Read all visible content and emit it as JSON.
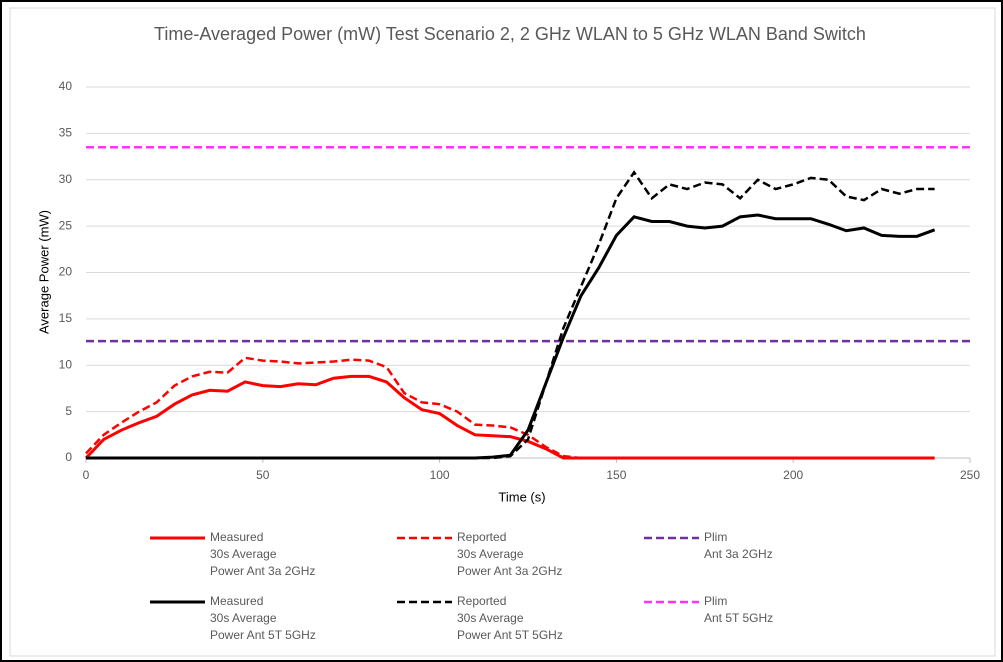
{
  "chart_data": {
    "type": "line",
    "title": "Time-Averaged Power (mW) Test Scenario 2, 2 GHz WLAN to 5 GHz WLAN Band Switch",
    "xlabel": "Time (s)",
    "ylabel": "Average Power (mW)",
    "xlim": [
      0,
      250
    ],
    "xticks": [
      0,
      50,
      100,
      150,
      200,
      250
    ],
    "ylim": [
      0,
      40
    ],
    "yticks": [
      0,
      5,
      10,
      15,
      20,
      25,
      30,
      35,
      40
    ],
    "grid": true,
    "legend": "bottom",
    "series": [
      {
        "name": "Measured\n30s Average\nPower Ant 3a 2GHz",
        "color": "#ff0000",
        "linestyle": "solid",
        "x": [
          0,
          5,
          10,
          15,
          20,
          25,
          30,
          35,
          40,
          45,
          50,
          55,
          60,
          65,
          70,
          75,
          80,
          85,
          90,
          95,
          100,
          105,
          110,
          115,
          120,
          125,
          130,
          135,
          140,
          145,
          150,
          155,
          160,
          165,
          170,
          175,
          180,
          185,
          190,
          195,
          200,
          205,
          210,
          215,
          220,
          225,
          230,
          235,
          240
        ],
        "values": [
          0,
          2,
          3,
          3.8,
          4.5,
          5.8,
          6.8,
          7.3,
          7.2,
          8.2,
          7.8,
          7.7,
          8,
          7.9,
          8.6,
          8.8,
          8.8,
          8.2,
          6.5,
          5.2,
          4.8,
          3.5,
          2.5,
          2.4,
          2.3,
          1.8,
          1,
          0,
          0,
          0,
          0,
          0,
          0,
          0,
          0,
          0,
          0,
          0,
          0,
          0,
          0,
          0,
          0,
          0,
          0,
          0,
          0,
          0,
          0
        ]
      },
      {
        "name": "Reported\n30s Average\nPower Ant 3a 2GHz",
        "color": "#ff0000",
        "linestyle": "dashed",
        "x": [
          0,
          5,
          10,
          15,
          20,
          25,
          30,
          35,
          40,
          45,
          50,
          55,
          60,
          65,
          70,
          75,
          80,
          85,
          90,
          95,
          100,
          105,
          110,
          115,
          120,
          125,
          130,
          135,
          140,
          145,
          150,
          155,
          160,
          165,
          170,
          175,
          180,
          185,
          190,
          195,
          200,
          205,
          210,
          215,
          220,
          225,
          230,
          235,
          240
        ],
        "values": [
          0.5,
          2.5,
          3.8,
          5,
          6,
          7.8,
          8.8,
          9.3,
          9.2,
          10.8,
          10.5,
          10.4,
          10.2,
          10.3,
          10.4,
          10.6,
          10.5,
          9.8,
          7,
          6,
          5.8,
          5,
          3.6,
          3.5,
          3.3,
          2.5,
          1.2,
          0.2,
          0,
          0,
          0,
          0,
          0,
          0,
          0,
          0,
          0,
          0,
          0,
          0,
          0,
          0,
          0,
          0,
          0,
          0,
          0,
          0,
          0
        ]
      },
      {
        "name": "Plim\nAnt 3a 2GHz",
        "color": "#7030a0",
        "linestyle": "dashed",
        "x": [
          0,
          250
        ],
        "values": [
          12.6,
          12.6
        ]
      },
      {
        "name": "Measured\n30s Average\nPower Ant 5T 5GHz",
        "color": "#000000",
        "linestyle": "solid",
        "x": [
          0,
          5,
          10,
          15,
          20,
          25,
          30,
          35,
          40,
          45,
          50,
          55,
          60,
          65,
          70,
          75,
          80,
          85,
          90,
          95,
          100,
          105,
          110,
          115,
          120,
          125,
          130,
          135,
          140,
          145,
          150,
          155,
          160,
          165,
          170,
          175,
          180,
          185,
          190,
          195,
          200,
          205,
          210,
          215,
          220,
          225,
          230,
          235,
          240
        ],
        "values": [
          0,
          0,
          0,
          0,
          0,
          0,
          0,
          0,
          0,
          0,
          0,
          0,
          0,
          0,
          0,
          0,
          0,
          0,
          0,
          0,
          0,
          0,
          0,
          0.1,
          0.3,
          3,
          8,
          13,
          17.5,
          20.5,
          24,
          26,
          25.5,
          25.5,
          25,
          24.8,
          25,
          26,
          26.2,
          25.8,
          25.8,
          25.8,
          25.2,
          24.5,
          24.8,
          24,
          23.9,
          23.9,
          24.6
        ]
      },
      {
        "name": "Reported\n30s Average\nPower Ant 5T 5GHz",
        "color": "#000000",
        "linestyle": "dashed",
        "x": [
          0,
          5,
          10,
          15,
          20,
          25,
          30,
          35,
          40,
          45,
          50,
          55,
          60,
          65,
          70,
          75,
          80,
          85,
          90,
          95,
          100,
          105,
          110,
          115,
          120,
          125,
          130,
          135,
          140,
          145,
          150,
          155,
          160,
          165,
          170,
          175,
          180,
          185,
          190,
          195,
          200,
          205,
          210,
          215,
          220,
          225,
          230,
          235,
          240
        ],
        "values": [
          0,
          0,
          0,
          0,
          0,
          0,
          0,
          0,
          0,
          0,
          0,
          0,
          0,
          0,
          0,
          0,
          0,
          0,
          0,
          0,
          0,
          0,
          0,
          0,
          0.2,
          2,
          8,
          14,
          18.5,
          23,
          28,
          30.8,
          28,
          29.5,
          29,
          29.7,
          29.5,
          28,
          30,
          29,
          29.5,
          30.2,
          30,
          28.2,
          27.8,
          29,
          28.5,
          29,
          29
        ]
      },
      {
        "name": "Plim\nAnt 5T 5GHz",
        "color": "#ff33ff",
        "linestyle": "dashed",
        "x": [
          0,
          250
        ],
        "values": [
          33.5,
          33.5
        ]
      }
    ]
  }
}
